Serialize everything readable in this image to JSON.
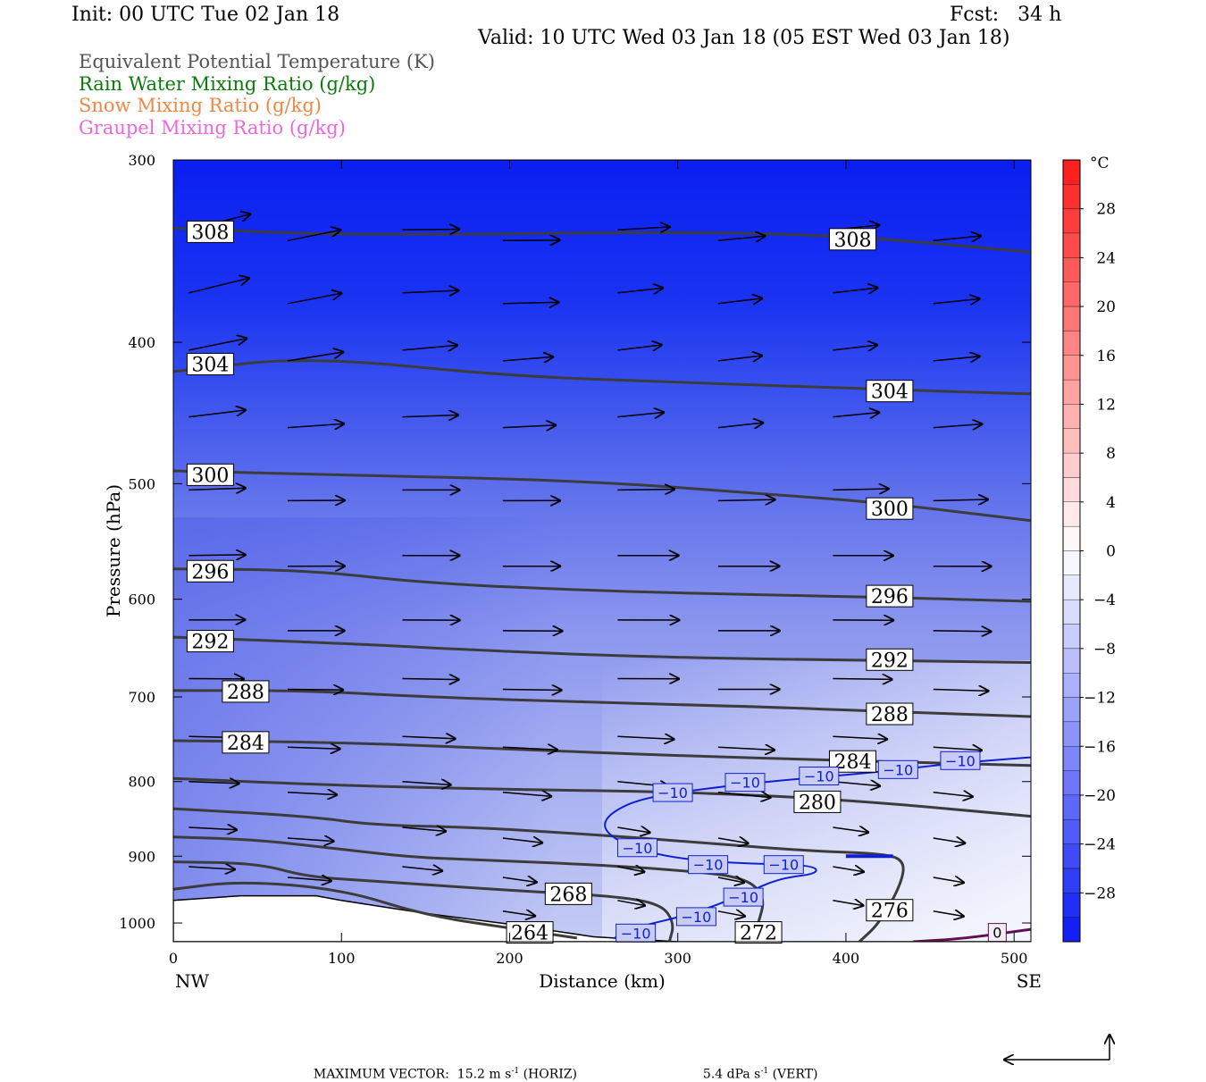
{
  "header": {
    "init": "Init: 00 UTC Tue 02 Jan 18",
    "fcst": "Fcst:   34 h",
    "valid": "Valid: 10 UTC Wed 03 Jan 18 (05 EST Wed 03 Jan 18)",
    "fields": [
      {
        "label": "Equivalent Potential Temperature (K)",
        "color": "#555555"
      },
      {
        "label": "Rain Water Mixing Ratio (g/kg)",
        "color": "#0a7a0a"
      },
      {
        "label": "Snow Mixing Ratio (g/kg)",
        "color": "#ee8844"
      },
      {
        "label": "Graupel Mixing Ratio (g/kg)",
        "color": "#ee66dd"
      }
    ]
  },
  "chart_data": {
    "type": "cross-section",
    "xlabel": "Distance (km)",
    "ylabel": "Pressure (hPa)",
    "xlim": [
      0,
      510
    ],
    "ylim": [
      300,
      1030
    ],
    "y_log": true,
    "x_ticks": [
      0,
      100,
      200,
      300,
      400,
      500
    ],
    "y_ticks": [
      300,
      400,
      500,
      600,
      700,
      800,
      900,
      1000
    ],
    "left_endpoint": "NW",
    "right_endpoint": "SE",
    "colorbar": {
      "unit": "°C",
      "tick_labels": [
        "28",
        "24",
        "20",
        "16",
        "12",
        "8",
        "4",
        "0",
        "−4",
        "−8",
        "−12",
        "−16",
        "−20",
        "−24",
        "−28"
      ],
      "tick_values": [
        28,
        24,
        20,
        16,
        12,
        8,
        4,
        0,
        -4,
        -8,
        -12,
        -16,
        -20,
        -24,
        -28
      ],
      "range": [
        -32,
        32
      ]
    },
    "theta_e_contours": [
      {
        "label": "308",
        "points": [
          [
            0,
            334
          ],
          [
            100,
            338
          ],
          [
            300,
            336
          ],
          [
            400,
            338
          ],
          [
            510,
            347
          ]
        ],
        "labels_at": [
          [
            22,
            336
          ],
          [
            404,
            340
          ]
        ]
      },
      {
        "label": "304",
        "points": [
          [
            0,
            419
          ],
          [
            80,
            409
          ],
          [
            200,
            422
          ],
          [
            300,
            426
          ],
          [
            400,
            430
          ],
          [
            510,
            434
          ]
        ],
        "labels_at": [
          [
            22,
            414
          ],
          [
            426,
            432
          ]
        ]
      },
      {
        "label": "300",
        "points": [
          [
            0,
            490
          ],
          [
            100,
            493
          ],
          [
            250,
            498
          ],
          [
            350,
            508
          ],
          [
            420,
            515
          ],
          [
            510,
            530
          ]
        ],
        "labels_at": [
          [
            22,
            493
          ],
          [
            426,
            520
          ]
        ]
      },
      {
        "label": "296",
        "points": [
          [
            0,
            572
          ],
          [
            80,
            573
          ],
          [
            150,
            585
          ],
          [
            250,
            592
          ],
          [
            350,
            596
          ],
          [
            420,
            598
          ],
          [
            510,
            602
          ]
        ],
        "labels_at": [
          [
            22,
            574
          ],
          [
            426,
            597
          ]
        ]
      },
      {
        "label": "292",
        "points": [
          [
            0,
            637
          ],
          [
            100,
            643
          ],
          [
            200,
            652
          ],
          [
            300,
            658
          ],
          [
            420,
            661
          ],
          [
            510,
            663
          ]
        ],
        "labels_at": [
          [
            22,
            641
          ],
          [
            426,
            660
          ]
        ]
      },
      {
        "label": "288",
        "points": [
          [
            0,
            693
          ],
          [
            80,
            693
          ],
          [
            150,
            700
          ],
          [
            250,
            706
          ],
          [
            350,
            711
          ],
          [
            420,
            716
          ],
          [
            510,
            722
          ]
        ],
        "labels_at": [
          [
            43,
            694
          ],
          [
            426,
            719
          ]
        ]
      },
      {
        "label": "284",
        "points": [
          [
            0,
            750
          ],
          [
            100,
            752
          ],
          [
            200,
            760
          ],
          [
            300,
            768
          ],
          [
            400,
            774
          ],
          [
            510,
            780
          ]
        ],
        "labels_at": [
          [
            43,
            752
          ],
          [
            404,
            775
          ]
        ]
      },
      {
        "label": "280",
        "points": [
          [
            0,
            796
          ],
          [
            100,
            805
          ],
          [
            200,
            810
          ],
          [
            300,
            813
          ],
          [
            400,
            823
          ],
          [
            510,
            845
          ]
        ],
        "labels_at": [
          [
            383,
            826
          ]
        ]
      },
      {
        "label": "276",
        "points": [
          [
            0,
            835
          ],
          [
            80,
            845
          ],
          [
            120,
            857
          ],
          [
            180,
            860
          ],
          [
            250,
            870
          ],
          [
            310,
            880
          ],
          [
            380,
            893
          ],
          [
            420,
            896
          ],
          [
            435,
            905
          ],
          [
            433,
            940
          ],
          [
            420,
            1000
          ],
          [
            408,
            1030
          ]
        ],
        "labels_at": [
          [
            426,
            980
          ]
        ]
      },
      {
        "label": "272",
        "points": [
          [
            0,
            873
          ],
          [
            50,
            877
          ],
          [
            100,
            890
          ],
          [
            140,
            901
          ],
          [
            180,
            905
          ],
          [
            250,
            912
          ],
          [
            300,
            920
          ],
          [
            340,
            930
          ],
          [
            352,
            960
          ],
          [
            348,
            1000
          ],
          [
            344,
            1030
          ]
        ],
        "labels_at": [
          [
            348,
            1015
          ]
        ]
      },
      {
        "label": "268",
        "points": [
          [
            0,
            908
          ],
          [
            50,
            910
          ],
          [
            80,
            930
          ],
          [
            120,
            936
          ],
          [
            200,
            950
          ],
          [
            260,
            958
          ],
          [
            290,
            970
          ],
          [
            298,
            1000
          ],
          [
            295,
            1030
          ]
        ],
        "labels_at": [
          [
            235,
            955
          ]
        ]
      },
      {
        "label": "264",
        "points": [
          [
            0,
            948
          ],
          [
            40,
            936
          ],
          [
            100,
            948
          ],
          [
            150,
            988
          ],
          [
            200,
            1008
          ],
          [
            240,
            1024
          ]
        ],
        "labels_at": [
          [
            212,
            1015
          ]
        ]
      }
    ],
    "temperature_contours": [
      {
        "label": "−10",
        "color": "#1020d0",
        "points": [
          [
            510,
            770
          ],
          [
            490,
            773
          ],
          [
            460,
            778
          ],
          [
            420,
            788
          ],
          [
            380,
            795
          ],
          [
            330,
            805
          ],
          [
            280,
            820
          ],
          [
            260,
            840
          ],
          [
            255,
            860
          ],
          [
            265,
            880
          ],
          [
            290,
            900
          ],
          [
            330,
            910
          ],
          [
            380,
            912
          ],
          [
            384,
            925
          ],
          [
            360,
            932
          ],
          [
            340,
            955
          ],
          [
            310,
            985
          ],
          [
            270,
            1010
          ],
          [
            262,
            1025
          ]
        ],
        "labels_at": [
          [
            468,
            774
          ],
          [
            431,
            785
          ],
          [
            384,
            793
          ],
          [
            340,
            801
          ],
          [
            297,
            814
          ],
          [
            276,
            888
          ],
          [
            318,
            912
          ],
          [
            363,
            912
          ],
          [
            339,
            960
          ],
          [
            311,
            990
          ],
          [
            275,
            1016
          ]
        ]
      },
      {
        "label": "−10",
        "color": "#1020d0",
        "points": [
          [
            400,
            900
          ],
          [
            428,
            900
          ]
        ],
        "labels_at": []
      }
    ],
    "zero_contour": {
      "label": "0",
      "color": "#601050",
      "points": [
        [
          440,
          1030
        ],
        [
          470,
          1025
        ],
        [
          510,
          1010
        ]
      ],
      "labels_at": [
        [
          490,
          1015
        ]
      ]
    },
    "terrain_pressure": [
      [
        0,
        965
      ],
      [
        40,
        958
      ],
      [
        85,
        958
      ],
      [
        100,
        965
      ],
      [
        150,
        985
      ],
      [
        200,
        1002
      ],
      [
        250,
        1022
      ],
      [
        300,
        1030
      ],
      [
        510,
        1030
      ]
    ],
    "wind_vectors_sample": [
      {
        "x": 5,
        "p": 340,
        "u": 14,
        "w": 3
      },
      {
        "x": 80,
        "p": 345,
        "u": 12,
        "w": 2
      },
      {
        "x": 150,
        "p": 345,
        "u": 13,
        "w": 0
      },
      {
        "x": 300,
        "p": 400,
        "u": 10,
        "w": 1
      },
      {
        "x": 150,
        "p": 530,
        "u": 13,
        "w": 0
      },
      {
        "x": 300,
        "p": 605,
        "u": 14,
        "w": 0
      },
      {
        "x": 300,
        "p": 700,
        "u": 14,
        "w": 0
      },
      {
        "x": 300,
        "p": 790,
        "u": 12,
        "w": -1
      },
      {
        "x": 300,
        "p": 900,
        "u": 6,
        "w": -1
      },
      {
        "x": 450,
        "p": 960,
        "u": 7,
        "w": -1
      }
    ]
  },
  "footer": {
    "max_vector_label": "MAXIMUM VECTOR:",
    "horiz": "15.2 m s",
    "horiz_sup": "-1",
    "horiz_tail": " (HORIZ)",
    "vert": "5.4 dPa s",
    "vert_sup": "-1",
    "vert_tail": " (VERT)"
  }
}
